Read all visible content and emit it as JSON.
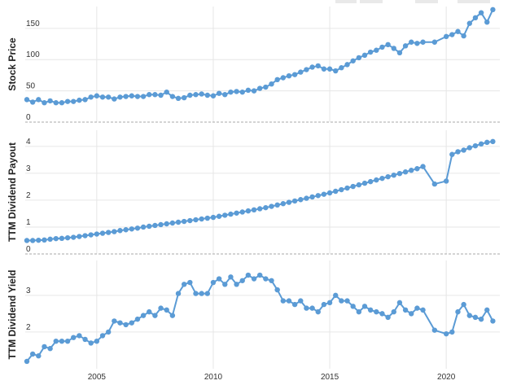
{
  "chart_data": [
    {
      "type": "line",
      "ylabel": "Stock Price",
      "yticks": [
        0,
        50,
        100,
        150
      ],
      "ylim": [
        0,
        185
      ],
      "grid": true,
      "series": [
        {
          "color": "#5b9bd5",
          "x": [
            2002.0,
            2002.25,
            2002.5,
            2002.75,
            2003.0,
            2003.25,
            2003.5,
            2003.75,
            2004.0,
            2004.25,
            2004.5,
            2004.75,
            2005.0,
            2005.25,
            2005.5,
            2005.75,
            2006.0,
            2006.25,
            2006.5,
            2006.75,
            2007.0,
            2007.25,
            2007.5,
            2007.75,
            2008.0,
            2008.25,
            2008.5,
            2008.75,
            2009.0,
            2009.25,
            2009.5,
            2009.75,
            2010.0,
            2010.25,
            2010.5,
            2010.75,
            2011.0,
            2011.25,
            2011.5,
            2011.75,
            2012.0,
            2012.25,
            2012.5,
            2012.75,
            2013.0,
            2013.25,
            2013.5,
            2013.75,
            2014.0,
            2014.25,
            2014.5,
            2014.75,
            2015.0,
            2015.25,
            2015.5,
            2015.75,
            2016.0,
            2016.25,
            2016.5,
            2016.75,
            2017.0,
            2017.25,
            2017.5,
            2017.75,
            2018.0,
            2018.25,
            2018.5,
            2018.75,
            2019.0,
            2019.5,
            2020.0,
            2020.25,
            2020.5,
            2020.75,
            2021.0,
            2021.25,
            2021.5,
            2021.75,
            2022.0
          ],
          "values": [
            36,
            32,
            36,
            31,
            34,
            31,
            31,
            33,
            33,
            35,
            36,
            40,
            42,
            40,
            40,
            37,
            40,
            41,
            42,
            41,
            41,
            44,
            44,
            43,
            48,
            41,
            38,
            39,
            43,
            44,
            45,
            43,
            42,
            46,
            44,
            48,
            49,
            48,
            51,
            50,
            54,
            56,
            61,
            68,
            71,
            74,
            76,
            80,
            84,
            88,
            90,
            85,
            85,
            82,
            87,
            92,
            98,
            103,
            107,
            112,
            115,
            120,
            124,
            118,
            111,
            122,
            128,
            126,
            128,
            128,
            137,
            140,
            145,
            138,
            158,
            167,
            175,
            160,
            180
          ]
        }
      ]
    },
    {
      "type": "line",
      "ylabel": "TTM Dividend Payout",
      "yticks": [
        0,
        1,
        2,
        3,
        4
      ],
      "ylim": [
        0,
        4.6
      ],
      "grid": true,
      "series": [
        {
          "color": "#5b9bd5",
          "x": [
            2002.0,
            2002.25,
            2002.5,
            2002.75,
            2003.0,
            2003.25,
            2003.5,
            2003.75,
            2004.0,
            2004.25,
            2004.5,
            2004.75,
            2005.0,
            2005.25,
            2005.5,
            2005.75,
            2006.0,
            2006.25,
            2006.5,
            2006.75,
            2007.0,
            2007.25,
            2007.5,
            2007.75,
            2008.0,
            2008.25,
            2008.5,
            2008.75,
            2009.0,
            2009.25,
            2009.5,
            2009.75,
            2010.0,
            2010.25,
            2010.5,
            2010.75,
            2011.0,
            2011.25,
            2011.5,
            2011.75,
            2012.0,
            2012.25,
            2012.5,
            2012.75,
            2013.0,
            2013.25,
            2013.5,
            2013.75,
            2014.0,
            2014.25,
            2014.5,
            2014.75,
            2015.0,
            2015.25,
            2015.5,
            2015.75,
            2016.0,
            2016.25,
            2016.5,
            2016.75,
            2017.0,
            2017.25,
            2017.5,
            2017.75,
            2018.0,
            2018.25,
            2018.5,
            2018.75,
            2019.0,
            2019.5,
            2020.0,
            2020.25,
            2020.5,
            2020.75,
            2021.0,
            2021.25,
            2021.5,
            2021.75,
            2022.0
          ],
          "values": [
            0.5,
            0.5,
            0.51,
            0.52,
            0.55,
            0.57,
            0.58,
            0.6,
            0.62,
            0.65,
            0.68,
            0.71,
            0.74,
            0.77,
            0.8,
            0.83,
            0.87,
            0.9,
            0.93,
            0.96,
            1.0,
            1.03,
            1.06,
            1.09,
            1.12,
            1.15,
            1.18,
            1.21,
            1.24,
            1.27,
            1.3,
            1.33,
            1.36,
            1.4,
            1.44,
            1.48,
            1.52,
            1.56,
            1.6,
            1.64,
            1.68,
            1.72,
            1.77,
            1.82,
            1.87,
            1.92,
            1.97,
            2.02,
            2.07,
            2.12,
            2.17,
            2.22,
            2.27,
            2.33,
            2.39,
            2.45,
            2.51,
            2.57,
            2.63,
            2.69,
            2.75,
            2.81,
            2.87,
            2.93,
            2.99,
            3.05,
            3.11,
            3.17,
            3.25,
            2.6,
            2.71,
            3.7,
            3.8,
            3.86,
            3.95,
            4.02,
            4.09,
            4.15,
            4.18
          ]
        }
      ]
    },
    {
      "type": "line",
      "ylabel": "TTM Dividend Yield",
      "yticks": [
        2,
        3
      ],
      "ylim": [
        1.0,
        3.95
      ],
      "grid": true,
      "series": [
        {
          "color": "#5b9bd5",
          "x": [
            2002.0,
            2002.25,
            2002.5,
            2002.75,
            2003.0,
            2003.25,
            2003.5,
            2003.75,
            2004.0,
            2004.25,
            2004.5,
            2004.75,
            2005.0,
            2005.25,
            2005.5,
            2005.75,
            2006.0,
            2006.25,
            2006.5,
            2006.75,
            2007.0,
            2007.25,
            2007.5,
            2007.75,
            2008.0,
            2008.25,
            2008.5,
            2008.75,
            2009.0,
            2009.25,
            2009.5,
            2009.75,
            2010.0,
            2010.25,
            2010.5,
            2010.75,
            2011.0,
            2011.25,
            2011.5,
            2011.75,
            2012.0,
            2012.25,
            2012.5,
            2012.75,
            2013.0,
            2013.25,
            2013.5,
            2013.75,
            2014.0,
            2014.25,
            2014.5,
            2014.75,
            2015.0,
            2015.25,
            2015.5,
            2015.75,
            2016.0,
            2016.25,
            2016.5,
            2016.75,
            2017.0,
            2017.25,
            2017.5,
            2017.75,
            2018.0,
            2018.25,
            2018.5,
            2018.75,
            2019.0,
            2019.5,
            2020.0,
            2020.25,
            2020.5,
            2020.75,
            2021.0,
            2021.25,
            2021.5,
            2021.75,
            2022.0
          ],
          "values": [
            1.2,
            1.4,
            1.35,
            1.6,
            1.55,
            1.75,
            1.75,
            1.75,
            1.85,
            1.9,
            1.8,
            1.7,
            1.75,
            1.9,
            2.0,
            2.3,
            2.25,
            2.2,
            2.25,
            2.35,
            2.45,
            2.55,
            2.45,
            2.65,
            2.6,
            2.45,
            3.05,
            3.3,
            3.35,
            3.05,
            3.05,
            3.05,
            3.35,
            3.45,
            3.3,
            3.5,
            3.3,
            3.4,
            3.55,
            3.45,
            3.55,
            3.45,
            3.4,
            3.15,
            2.85,
            2.85,
            2.75,
            2.85,
            2.65,
            2.65,
            2.55,
            2.75,
            2.8,
            3.0,
            2.85,
            2.85,
            2.7,
            2.55,
            2.7,
            2.6,
            2.55,
            2.5,
            2.4,
            2.55,
            2.8,
            2.6,
            2.5,
            2.65,
            2.6,
            2.05,
            1.95,
            2.0,
            2.55,
            2.75,
            2.45,
            2.4,
            2.35,
            2.6,
            2.3
          ]
        }
      ]
    }
  ],
  "x_axis": {
    "ticks": [
      2005,
      2010,
      2015,
      2020
    ],
    "xlim": [
      2002.0,
      2022.3
    ]
  }
}
